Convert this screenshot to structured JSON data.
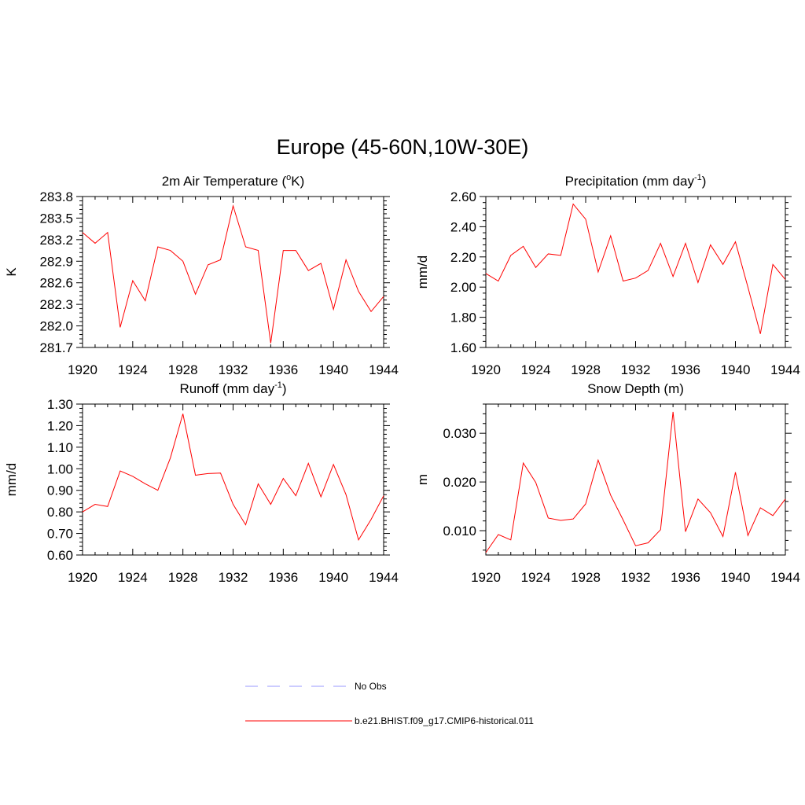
{
  "figure": {
    "title": "Europe (45-60N,10W-30E)",
    "legend": [
      {
        "label": "No Obs",
        "color": "#9999ff",
        "dash": true
      },
      {
        "label": "b.e21.BHIST.f09_g17.CMIP6-historical.011",
        "color": "#ff0000",
        "dash": false
      }
    ]
  },
  "colors": {
    "series": "#ff0000",
    "axis": "#000000"
  },
  "chart_data": [
    {
      "type": "line",
      "title_main": "2m Air Temperature (",
      "title_sup": "o",
      "title_tail": "K)",
      "ylabel": "K",
      "x": [
        1920,
        1921,
        1922,
        1923,
        1924,
        1925,
        1926,
        1927,
        1928,
        1929,
        1930,
        1931,
        1932,
        1933,
        1934,
        1935,
        1936,
        1937,
        1938,
        1939,
        1940,
        1941,
        1942,
        1943,
        1944
      ],
      "xlim": [
        1920,
        1944
      ],
      "xticks": [
        "1920",
        "1924",
        "1928",
        "1932",
        "1936",
        "1940",
        "1944"
      ],
      "ylim": [
        281.7,
        283.8
      ],
      "yticks": [
        "281.7",
        "282.0",
        "282.3",
        "282.6",
        "282.9",
        "283.2",
        "283.5",
        "283.8"
      ],
      "series": [
        {
          "values": [
            283.3,
            283.15,
            283.3,
            281.98,
            282.63,
            282.35,
            283.1,
            283.05,
            282.9,
            282.44,
            282.85,
            282.92,
            283.67,
            283.1,
            283.05,
            281.76,
            283.05,
            283.05,
            282.77,
            282.87,
            282.23,
            282.92,
            282.48,
            282.2,
            282.41
          ]
        }
      ]
    },
    {
      "type": "line",
      "title_main": "Precipitation (mm day",
      "title_sup": "-1",
      "title_tail": ")",
      "ylabel": "mm/d",
      "x": [
        1920,
        1921,
        1922,
        1923,
        1924,
        1925,
        1926,
        1927,
        1928,
        1929,
        1930,
        1931,
        1932,
        1933,
        1934,
        1935,
        1936,
        1937,
        1938,
        1939,
        1940,
        1941,
        1942,
        1943,
        1944
      ],
      "xlim": [
        1920,
        1944
      ],
      "xticks": [
        "1920",
        "1924",
        "1928",
        "1932",
        "1936",
        "1940",
        "1944"
      ],
      "ylim": [
        1.6,
        2.6
      ],
      "yticks": [
        "1.60",
        "1.80",
        "2.00",
        "2.20",
        "2.40",
        "2.60"
      ],
      "series": [
        {
          "values": [
            2.09,
            2.04,
            2.21,
            2.27,
            2.13,
            2.22,
            2.21,
            2.55,
            2.45,
            2.1,
            2.34,
            2.04,
            2.06,
            2.11,
            2.29,
            2.07,
            2.29,
            2.03,
            2.28,
            2.15,
            2.3,
            2.0,
            1.69,
            2.15,
            2.05
          ]
        }
      ]
    },
    {
      "type": "line",
      "title_main": "Runoff (mm day",
      "title_sup": "-1",
      "title_tail": ")",
      "ylabel": "mm/d",
      "x": [
        1920,
        1921,
        1922,
        1923,
        1924,
        1925,
        1926,
        1927,
        1928,
        1929,
        1930,
        1931,
        1932,
        1933,
        1934,
        1935,
        1936,
        1937,
        1938,
        1939,
        1940,
        1941,
        1942,
        1943,
        1944
      ],
      "xlim": [
        1920,
        1944
      ],
      "xticks": [
        "1920",
        "1924",
        "1928",
        "1932",
        "1936",
        "1940",
        "1944"
      ],
      "ylim": [
        0.6,
        1.3
      ],
      "yticks": [
        "0.60",
        "0.70",
        "0.80",
        "0.90",
        "1.00",
        "1.10",
        "1.20",
        "1.30"
      ],
      "series": [
        {
          "values": [
            0.8,
            0.835,
            0.825,
            0.99,
            0.965,
            0.93,
            0.9,
            1.05,
            1.255,
            0.97,
            0.978,
            0.98,
            0.835,
            0.74,
            0.93,
            0.835,
            0.955,
            0.875,
            1.025,
            0.87,
            1.02,
            0.88,
            0.67,
            0.765,
            0.875
          ]
        }
      ]
    },
    {
      "type": "line",
      "title_main": "Snow Depth (m)",
      "title_sup": "",
      "title_tail": "",
      "ylabel": "m",
      "x": [
        1920,
        1921,
        1922,
        1923,
        1924,
        1925,
        1926,
        1927,
        1928,
        1929,
        1930,
        1931,
        1932,
        1933,
        1934,
        1935,
        1936,
        1937,
        1938,
        1939,
        1940,
        1941,
        1942,
        1943,
        1944
      ],
      "xlim": [
        1920,
        1944
      ],
      "xticks": [
        "1920",
        "1924",
        "1928",
        "1932",
        "1936",
        "1940",
        "1944"
      ],
      "ylim": [
        0.005,
        0.036
      ],
      "yticks": [
        "0.010",
        "0.020",
        "0.030"
      ],
      "series": [
        {
          "values": [
            0.0055,
            0.0092,
            0.0081,
            0.0239,
            0.0199,
            0.0126,
            0.0121,
            0.0124,
            0.0155,
            0.0245,
            0.0173,
            0.0122,
            0.0069,
            0.0075,
            0.0102,
            0.0344,
            0.0098,
            0.0165,
            0.0137,
            0.0088,
            0.022,
            0.009,
            0.0147,
            0.0131,
            0.0165
          ]
        }
      ]
    }
  ]
}
